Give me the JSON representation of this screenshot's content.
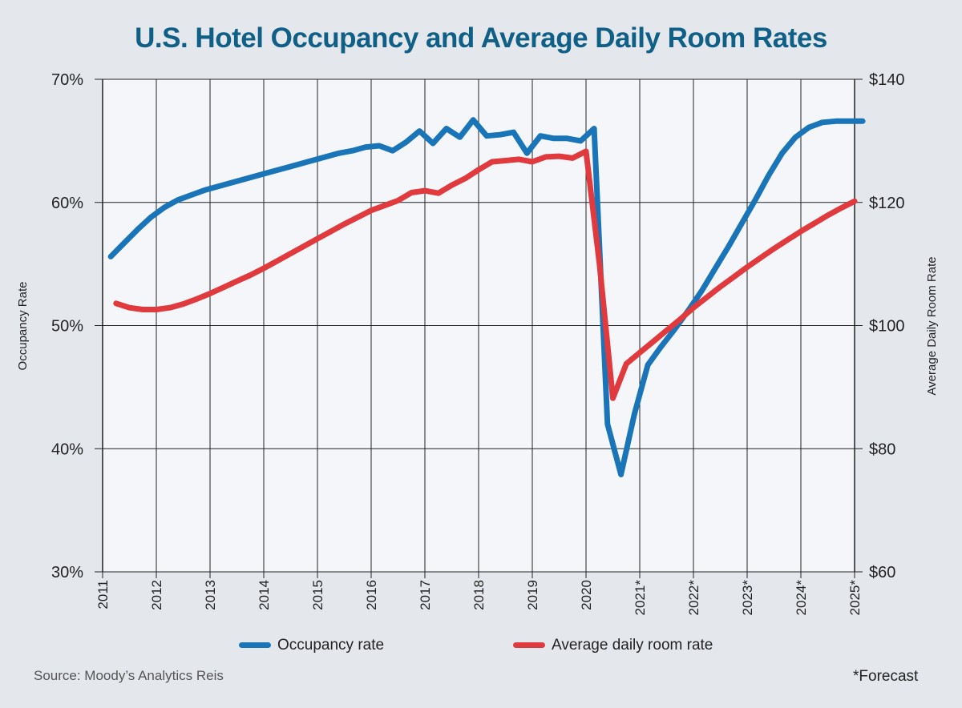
{
  "title": "U.S. Hotel Occupancy and Average Daily Room Rates",
  "source": "Source: Moody’s Analytics Reis",
  "footnote": "*Forecast",
  "chart_data": {
    "type": "line",
    "title": "U.S. Hotel Occupancy and Average Daily Room Rates",
    "x_tick_labels": [
      "2011",
      "2012",
      "2013",
      "2014",
      "2015",
      "2016",
      "2017",
      "2018",
      "2019",
      "2020",
      "2021*",
      "2022*",
      "2023*",
      "2024*",
      "2025*"
    ],
    "ylabel_left": "Occupancy Rate",
    "ylabel_right": "Average Daily Room Rate",
    "y_left_ticks": [
      "30%",
      "40%",
      "50%",
      "60%",
      "70%"
    ],
    "y_right_ticks": [
      "$60",
      "$80",
      "$100",
      "$120",
      "$140"
    ],
    "ylim_left": [
      30,
      70
    ],
    "ylim_right": [
      60,
      140
    ],
    "xlim": [
      2011,
      2025
    ],
    "grid": true,
    "legend_position": "bottom",
    "series": [
      {
        "name": "Occupancy rate",
        "axis": "left",
        "color": "#1a75b8",
        "x": [
          2011.15,
          2011.4,
          2011.65,
          2011.9,
          2012.15,
          2012.4,
          2012.65,
          2012.9,
          2013.15,
          2013.4,
          2013.65,
          2013.9,
          2014.15,
          2014.4,
          2014.65,
          2014.9,
          2015.15,
          2015.4,
          2015.65,
          2015.9,
          2016.15,
          2016.4,
          2016.65,
          2016.9,
          2017.15,
          2017.4,
          2017.65,
          2017.9,
          2018.15,
          2018.4,
          2018.65,
          2018.9,
          2019.15,
          2019.4,
          2019.65,
          2019.9,
          2020.15,
          2020.4,
          2020.65,
          2020.9,
          2021.15,
          2021.4,
          2021.65,
          2021.9,
          2022.15,
          2022.4,
          2022.65,
          2022.9,
          2023.15,
          2023.4,
          2023.65,
          2023.9,
          2024.15,
          2024.4,
          2024.65,
          2024.9,
          2025.15
        ],
        "values": [
          55.6,
          56.7,
          57.8,
          58.8,
          59.6,
          60.2,
          60.6,
          61.0,
          61.3,
          61.6,
          61.9,
          62.2,
          62.5,
          62.8,
          63.1,
          63.4,
          63.7,
          64.0,
          64.2,
          64.5,
          64.6,
          64.2,
          64.9,
          65.8,
          64.8,
          66.0,
          65.3,
          66.7,
          65.4,
          65.5,
          65.7,
          64.0,
          65.4,
          65.2,
          65.2,
          65.0,
          66.0,
          42.0,
          37.9,
          42.8,
          46.8,
          48.3,
          49.7,
          51.2,
          52.8,
          54.6,
          56.4,
          58.3,
          60.2,
          62.2,
          64.0,
          65.3,
          66.1,
          66.5,
          66.6,
          66.6,
          66.6
        ]
      },
      {
        "name": "Average daily room rate",
        "axis": "right",
        "color": "#e03a3e",
        "x": [
          2011.25,
          2011.5,
          2011.75,
          2012.0,
          2012.25,
          2012.5,
          2012.75,
          2013.0,
          2013.25,
          2013.5,
          2013.75,
          2014.0,
          2014.25,
          2014.5,
          2014.75,
          2015.0,
          2015.25,
          2015.5,
          2015.75,
          2016.0,
          2016.25,
          2016.5,
          2016.75,
          2017.0,
          2017.25,
          2017.5,
          2017.75,
          2018.0,
          2018.25,
          2018.5,
          2018.75,
          2019.0,
          2019.25,
          2019.5,
          2019.75,
          2020.0,
          2020.25,
          2020.5,
          2020.75,
          2021.0,
          2021.25,
          2021.5,
          2021.75,
          2022.0,
          2022.25,
          2022.5,
          2022.75,
          2023.0,
          2023.25,
          2023.5,
          2023.75,
          2024.0,
          2024.25,
          2024.5,
          2024.75,
          2025.0
        ],
        "values": [
          103.6,
          102.9,
          102.6,
          102.6,
          102.9,
          103.5,
          104.3,
          105.2,
          106.2,
          107.2,
          108.2,
          109.3,
          110.5,
          111.7,
          112.9,
          114.1,
          115.3,
          116.5,
          117.6,
          118.7,
          119.5,
          120.3,
          121.6,
          121.9,
          121.5,
          122.8,
          123.9,
          125.3,
          126.6,
          126.8,
          127.0,
          126.6,
          127.4,
          127.5,
          127.2,
          128.3,
          110.0,
          88.2,
          93.8,
          95.6,
          97.4,
          99.2,
          101.0,
          102.9,
          104.6,
          106.3,
          107.9,
          109.5,
          111.0,
          112.5,
          113.9,
          115.3,
          116.6,
          117.9,
          119.1,
          120.2
        ]
      }
    ]
  }
}
